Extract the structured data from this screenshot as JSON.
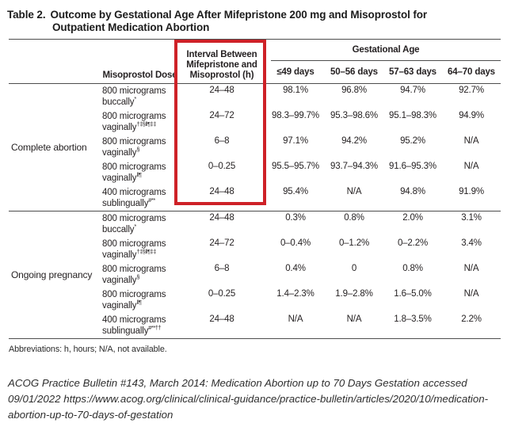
{
  "title": {
    "label": "Table 2.",
    "text": "Outcome by Gestational Age After Mifepristone 200 mg and Misoprostol for Outpatient Medication Abortion"
  },
  "table": {
    "highlight_color": "#ce2127",
    "header": {
      "dose": "Misoprostol Dose",
      "interval": "Interval Between Mifepristone and Misoprostol (h)",
      "gestational_age": "Gestational Age",
      "age_columns": [
        "≤49 days",
        "50–56 days",
        "57–63 days",
        "64–70 days"
      ]
    },
    "groups": [
      {
        "label": "Complete abortion",
        "rows": [
          {
            "dose_line1": "800 micrograms",
            "dose_line2": "buccally",
            "marker": "*",
            "interval": "24–48",
            "values": [
              "98.1%",
              "96.8%",
              "94.7%",
              "92.7%"
            ]
          },
          {
            "dose_line1": "800 micrograms",
            "dose_line2": "vaginally",
            "marker": "†‡§‖¶‡‡",
            "interval": "24–72",
            "values": [
              "98.3–99.7%",
              "95.3–98.6%",
              "95.1–98.3%",
              "94.9%"
            ]
          },
          {
            "dose_line1": "800 micrograms",
            "dose_line2": "vaginally",
            "marker": "§",
            "interval": "6–8",
            "values": [
              "97.1%",
              "94.2%",
              "95.2%",
              "N/A"
            ]
          },
          {
            "dose_line1": "800 micrograms",
            "dose_line2": "vaginally",
            "marker": "‖¶",
            "interval": "0–0.25",
            "values": [
              "95.5–95.7%",
              "93.7–94.3%",
              "91.6–95.3%",
              "N/A"
            ]
          },
          {
            "dose_line1": "400 micrograms",
            "dose_line2": "sublingually",
            "marker": "#**",
            "interval": "24–48",
            "values": [
              "95.4%",
              "N/A",
              "94.8%",
              "91.9%"
            ]
          }
        ]
      },
      {
        "label": "Ongoing pregnancy",
        "rows": [
          {
            "dose_line1": "800 micrograms",
            "dose_line2": "buccally",
            "marker": "*",
            "interval": "24–48",
            "values": [
              "0.3%",
              "0.8%",
              "2.0%",
              "3.1%"
            ]
          },
          {
            "dose_line1": "800 micrograms",
            "dose_line2": "vaginally",
            "marker": "†‡§‖¶‡‡",
            "interval": "24–72",
            "values": [
              "0–0.4%",
              "0–1.2%",
              "0–2.2%",
              "3.4%"
            ]
          },
          {
            "dose_line1": "800 micrograms",
            "dose_line2": "vaginally",
            "marker": "§",
            "interval": "6–8",
            "values": [
              "0.4%",
              "0",
              "0.8%",
              "N/A"
            ]
          },
          {
            "dose_line1": "800 micrograms",
            "dose_line2": "vaginally",
            "marker": "‖¶",
            "interval": "0–0.25",
            "values": [
              "1.4–2.3%",
              "1.9–2.8%",
              "1.6–5.0%",
              "N/A"
            ]
          },
          {
            "dose_line1": "400 micrograms",
            "dose_line2": "sublingually",
            "marker": "#**††",
            "interval": "24–48",
            "values": [
              "N/A",
              "N/A",
              "1.8–3.5%",
              "2.2%"
            ]
          }
        ]
      }
    ]
  },
  "footer": {
    "abbreviations": "Abbreviations: h, hours; N/A, not available.",
    "citation": "ACOG Practice Bulletin #143, March 2014: Medication Abortion up to 70 Days Gestation accessed 09/01/2022 https://www.acog.org/clinical/clinical-guidance/practice-bulletin/articles/2020/10/medication-abortion-up-to-70-days-of-gestation"
  }
}
